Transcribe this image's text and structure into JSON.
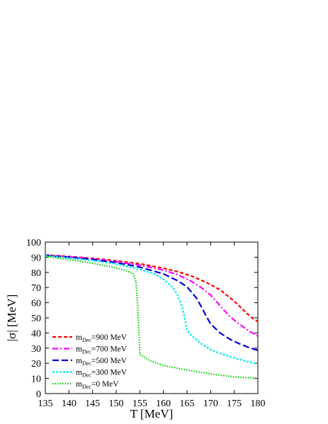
{
  "chart_data": {
    "type": "line",
    "xlabel": "T [MeV]",
    "ylabel": "|σ|  [MeV]",
    "xlim": [
      135,
      180
    ],
    "ylim": [
      0,
      100
    ],
    "xticks": [
      135,
      140,
      145,
      150,
      155,
      160,
      165,
      170,
      175,
      180
    ],
    "yticks": [
      0,
      10,
      20,
      30,
      40,
      50,
      60,
      70,
      80,
      90,
      100
    ],
    "legend_position": "bottom-left",
    "series": [
      {
        "label_main": "m",
        "label_sub": "Dec",
        "label_rest": "=900 MeV",
        "color": "#ff0000",
        "dash": "5,3",
        "x": [
          135,
          140,
          145,
          150,
          155,
          160,
          163,
          166,
          169,
          172,
          175,
          177,
          178,
          179,
          180
        ],
        "y": [
          91.5,
          90.5,
          89.3,
          87.7,
          85.7,
          82.8,
          80.5,
          77.5,
          73.5,
          68.5,
          61,
          55,
          52,
          49.5,
          47.5
        ]
      },
      {
        "label_main": "m",
        "label_sub": "Dec",
        "label_rest": "=700 MeV",
        "color": "#ff00ff",
        "dash": "8,3,2,3",
        "x": [
          135,
          140,
          145,
          150,
          155,
          160,
          163,
          166,
          168,
          170,
          172,
          174,
          176,
          178,
          180
        ],
        "y": [
          91.3,
          90.3,
          89,
          87,
          84.8,
          81.5,
          78.5,
          74,
          70,
          65,
          58,
          51,
          46,
          41.5,
          38
        ]
      },
      {
        "label_main": "m",
        "label_sub": "Dec",
        "label_rest": "=500 MeV",
        "color": "#0000dd",
        "dash": "9,4",
        "x": [
          135,
          140,
          145,
          150,
          155,
          160,
          163,
          165,
          167,
          168,
          169,
          170,
          172,
          174,
          176,
          178,
          180
        ],
        "y": [
          91.2,
          90,
          88.5,
          86.5,
          83.5,
          79,
          74.5,
          70.5,
          63,
          57.5,
          51.5,
          46,
          40,
          36,
          33,
          30.5,
          28.5
        ]
      },
      {
        "label_main": "m",
        "label_sub": "Dec",
        "label_rest": "=300 MeV",
        "color": "#00eeee",
        "dash": "3,2",
        "x": [
          135,
          140,
          145,
          150,
          155,
          158,
          160,
          162,
          163,
          164,
          164.5,
          165,
          166,
          168,
          170,
          172,
          175,
          178,
          180
        ],
        "y": [
          91,
          89.5,
          87.8,
          85.5,
          82,
          79,
          75.5,
          70,
          65,
          57,
          50,
          42,
          38,
          33,
          29,
          26.5,
          23.5,
          21,
          19.5
        ]
      },
      {
        "label_main": "m",
        "label_sub": "Dec",
        "label_rest": "=0 MeV",
        "color": "#00cc00",
        "dash": "1.5,2",
        "x": [
          135,
          140,
          145,
          150,
          152,
          153.5,
          154.2,
          154.6,
          154.9,
          155,
          157,
          160,
          165,
          170,
          175,
          180
        ],
        "y": [
          90.5,
          88.5,
          86,
          83,
          81.2,
          79.5,
          74,
          55,
          35,
          26,
          22,
          18.5,
          15.5,
          13,
          11,
          10
        ]
      }
    ]
  }
}
